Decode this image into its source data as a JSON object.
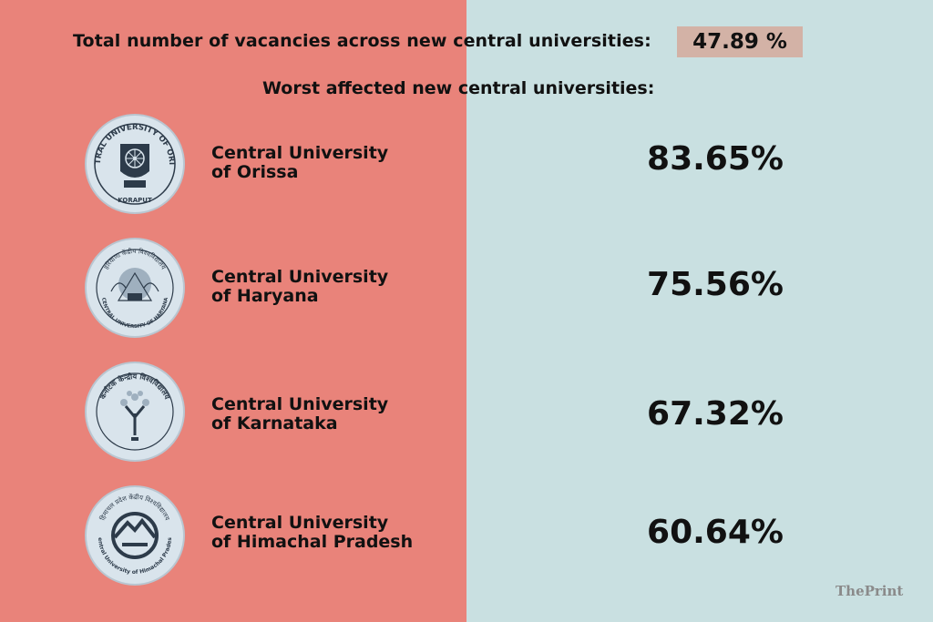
{
  "colors": {
    "left_panel": "#e9837a",
    "right_panel": "#c9e0e1",
    "badge": "#d3b2a6",
    "text": "#111111",
    "logo_bg": "#d9e4ec",
    "logo_ink": "#2d3b4a"
  },
  "headline": "Total number of vacancies across new central universities:",
  "total_vacancy": "47.89 %",
  "subheading": "Worst affected new central universities:",
  "universities": [
    {
      "name_line1": "Central University",
      "name_line2": "of Orissa",
      "vacancy": "83.65%",
      "logo": "central-university-of-orissa-seal",
      "logo_text": "CENTRAL UNIVERSITY OF ORISSA",
      "logo_bottom": "KORAPUT"
    },
    {
      "name_line1": "Central University",
      "name_line2": "of Haryana",
      "vacancy": "75.56%",
      "logo": "central-university-of-haryana-seal",
      "logo_text": "हरियाणा केंद्रीय विश्वविद्यालय",
      "logo_bottom": "CENTRAL UNIVERSITY OF HARYANA"
    },
    {
      "name_line1": "Central University",
      "name_line2": "of Karnataka",
      "vacancy": "67.32%",
      "logo": "central-university-of-karnataka-seal",
      "logo_text": "कर्नाटक केन्द्रीय विश्वविद्यालय",
      "logo_bottom": ""
    },
    {
      "name_line1": "Central University",
      "name_line2": "of Himachal Pradesh",
      "vacancy": "60.64%",
      "logo": "central-university-of-himachal-pradesh-seal",
      "logo_text": "हिमाचल प्रदेश केंद्रीय विश्वविद्यालय",
      "logo_bottom": "Central University of Himachal Pradesh"
    }
  ],
  "brand": "ThePrint"
}
